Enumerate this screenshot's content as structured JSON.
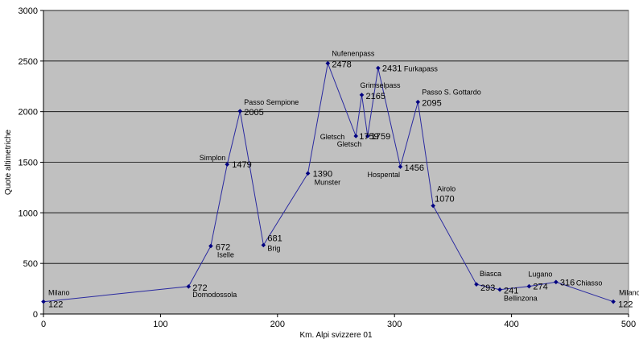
{
  "chart_data": {
    "type": "line",
    "title": "",
    "xlabel": "Km. Alpi svizzere 01",
    "ylabel": "Quote altimetriche",
    "xlim": [
      0,
      500
    ],
    "ylim": [
      0,
      3000
    ],
    "x_ticks": [
      "0",
      "100",
      "200",
      "300",
      "400",
      "500"
    ],
    "y_ticks": [
      "0",
      "500",
      "1000",
      "1500",
      "2000",
      "2500",
      "3000"
    ],
    "grid": "horizontal",
    "legend": "none",
    "colors": {
      "plot_bg": "#c0c0c0",
      "line": "#2a2aa0",
      "marker": "#000080",
      "grid": "#000000"
    },
    "points": [
      {
        "x": 0,
        "y": 122,
        "value_label": "122",
        "name": "Milano"
      },
      {
        "x": 124,
        "y": 272,
        "value_label": "272",
        "name": "Domodossola"
      },
      {
        "x": 143,
        "y": 672,
        "value_label": "672",
        "name": "Iselle"
      },
      {
        "x": 157,
        "y": 1479,
        "value_label": "1479",
        "name": "Simplon"
      },
      {
        "x": 168,
        "y": 2005,
        "value_label": "2005",
        "name": "Passo Sempione"
      },
      {
        "x": 188,
        "y": 681,
        "value_label": "681",
        "name": "Brig"
      },
      {
        "x": 226,
        "y": 1390,
        "value_label": "1390",
        "name": "Munster"
      },
      {
        "x": 243,
        "y": 2478,
        "value_label": "2478",
        "name": "Nufenenpass"
      },
      {
        "x": 267,
        "y": 1759,
        "value_label": "1759",
        "name": "Gletsch"
      },
      {
        "x": 272,
        "y": 2165,
        "value_label": "2165",
        "name": "Grimselpass"
      },
      {
        "x": 277,
        "y": 1759,
        "value_label": "1759",
        "name": "Gletsch"
      },
      {
        "x": 286,
        "y": 2431,
        "value_label": "2431",
        "name": "Furkapass"
      },
      {
        "x": 305,
        "y": 1456,
        "value_label": "1456",
        "name": "Hospental"
      },
      {
        "x": 320,
        "y": 2095,
        "value_label": "2095",
        "name": "Passo S. Gottardo"
      },
      {
        "x": 333,
        "y": 1070,
        "value_label": "1070",
        "name": "Airolo"
      },
      {
        "x": 370,
        "y": 293,
        "value_label": "293",
        "name": "Biasca"
      },
      {
        "x": 390,
        "y": 241,
        "value_label": "241",
        "name": "Bellinzona"
      },
      {
        "x": 415,
        "y": 274,
        "value_label": "274",
        "name": "Lugano"
      },
      {
        "x": 438,
        "y": 316,
        "value_label": "316",
        "name": "Chiasso"
      },
      {
        "x": 487,
        "y": 122,
        "value_label": "122",
        "name": "Milano"
      }
    ]
  }
}
